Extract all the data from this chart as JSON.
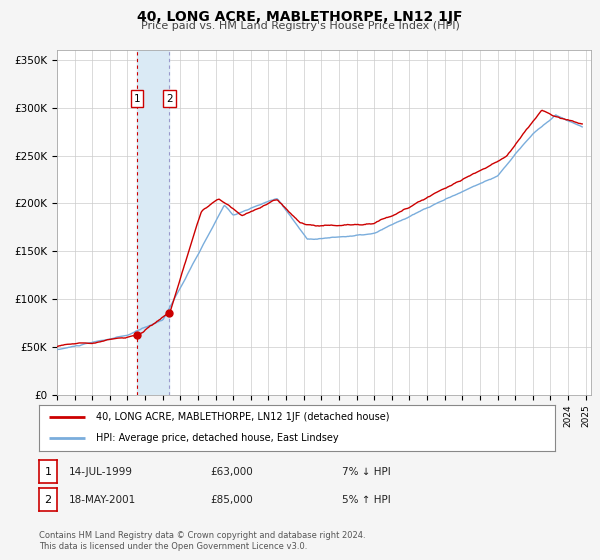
{
  "title": "40, LONG ACRE, MABLETHORPE, LN12 1JF",
  "subtitle": "Price paid vs. HM Land Registry's House Price Index (HPI)",
  "legend_line1": "40, LONG ACRE, MABLETHORPE, LN12 1JF (detached house)",
  "legend_line2": "HPI: Average price, detached house, East Lindsey",
  "footer1": "Contains HM Land Registry data © Crown copyright and database right 2024.",
  "footer2": "This data is licensed under the Open Government Licence v3.0.",
  "transaction1_label": "1",
  "transaction1_date": "14-JUL-1999",
  "transaction1_price": "£63,000",
  "transaction1_hpi": "7% ↓ HPI",
  "transaction2_label": "2",
  "transaction2_date": "18-MAY-2001",
  "transaction2_price": "£85,000",
  "transaction2_hpi": "5% ↑ HPI",
  "transaction1_year": 1999.54,
  "transaction1_value": 63000,
  "transaction2_year": 2001.38,
  "transaction2_value": 85000,
  "price_color": "#cc0000",
  "hpi_color": "#7aaddc",
  "vspan_color": "#daeaf5",
  "vline1_color": "#cc0000",
  "vline2_color": "#9999cc",
  "ylim": [
    0,
    360000
  ],
  "yticks": [
    0,
    50000,
    100000,
    150000,
    200000,
    250000,
    300000,
    350000
  ],
  "ylabels": [
    "£0",
    "£50K",
    "£100K",
    "£150K",
    "£200K",
    "£250K",
    "£300K",
    "£350K"
  ],
  "xlim_start": 1995.0,
  "xlim_end": 2025.3,
  "background_color": "#f5f5f5",
  "plot_bg_color": "#ffffff",
  "grid_color": "#cccccc"
}
